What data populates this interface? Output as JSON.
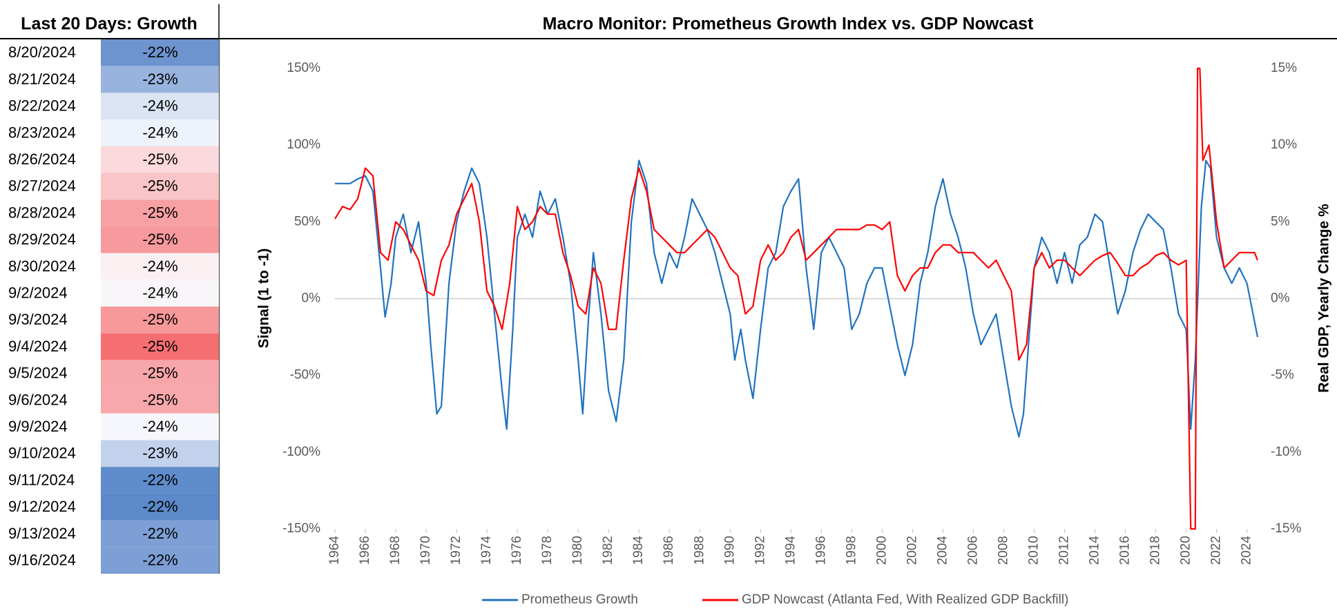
{
  "table": {
    "title": "Last 20 Days: Growth",
    "rows": [
      [
        "8/20/2024",
        "-22%"
      ],
      [
        "8/21/2024",
        "-23%"
      ],
      [
        "8/22/2024",
        "-24%"
      ],
      [
        "8/23/2024",
        "-24%"
      ],
      [
        "8/26/2024",
        "-25%"
      ],
      [
        "8/27/2024",
        "-25%"
      ],
      [
        "8/28/2024",
        "-25%"
      ],
      [
        "8/29/2024",
        "-25%"
      ],
      [
        "8/30/2024",
        "-24%"
      ],
      [
        "9/2/2024",
        "-24%"
      ],
      [
        "9/3/2024",
        "-25%"
      ],
      [
        "9/4/2024",
        "-25%"
      ],
      [
        "9/5/2024",
        "-25%"
      ],
      [
        "9/6/2024",
        "-25%"
      ],
      [
        "9/9/2024",
        "-24%"
      ],
      [
        "9/10/2024",
        "-23%"
      ],
      [
        "9/11/2024",
        "-22%"
      ],
      [
        "9/12/2024",
        "-22%"
      ],
      [
        "9/13/2024",
        "-22%"
      ],
      [
        "9/16/2024",
        "-22%"
      ]
    ],
    "colors": [
      "#6d94cf",
      "#98b3dd",
      "#dae4f3",
      "#eef2fa",
      "#fbd9dc",
      "#f9c5c8",
      "#f7a1a4",
      "#f69a9d",
      "#faf0f2",
      "#f9f6fa",
      "#f7989b",
      "#f56f72",
      "#f7a6a9",
      "#f7a8ab",
      "#f6f7fc",
      "#c2d2ec",
      "#5f8cca",
      "#5b89c9",
      "#7d9fd5",
      "#7d9fd5"
    ]
  },
  "chart_data": {
    "type": "line",
    "title": "Macro Monitor: Prometheus Growth Index vs. GDP Nowcast",
    "y_label": "Signal (1 to -1)",
    "y2_label": "Real GDP, Yearly Change %",
    "xlim": [
      1964,
      2024.7
    ],
    "xticks": [
      1964,
      1966,
      1968,
      1970,
      1972,
      1974,
      1976,
      1978,
      1980,
      1982,
      1984,
      1986,
      1988,
      1990,
      1992,
      1994,
      1996,
      1998,
      2000,
      2002,
      2004,
      2006,
      2008,
      2010,
      2012,
      2014,
      2016,
      2018,
      2020,
      2022,
      2024
    ],
    "ylim": [
      -150,
      150
    ],
    "yticks": [
      {
        "value": -150,
        "label": "-150%"
      },
      {
        "value": -100,
        "label": "-100%"
      },
      {
        "value": -50,
        "label": "-50%"
      },
      {
        "value": 0,
        "label": "0%"
      },
      {
        "value": 50,
        "label": "50%"
      },
      {
        "value": 100,
        "label": "100%"
      },
      {
        "value": 150,
        "label": "150%"
      }
    ],
    "y2lim": [
      -15,
      15
    ],
    "y2ticks": [
      {
        "value": -15,
        "label": "-15%"
      },
      {
        "value": -10,
        "label": "-10%"
      },
      {
        "value": -5,
        "label": "-5%"
      },
      {
        "value": 0,
        "label": "0%"
      },
      {
        "value": 5,
        "label": "5%"
      },
      {
        "value": 10,
        "label": "10%"
      },
      {
        "value": 15,
        "label": "15%"
      }
    ],
    "series": [
      {
        "name": "Prometheus Growth",
        "color": "#1f72c0",
        "x": [
          1964.0,
          1965.0,
          1965.5,
          1966.0,
          1966.5,
          1967.0,
          1967.3,
          1967.7,
          1968.0,
          1968.5,
          1969.0,
          1969.5,
          1970.0,
          1970.3,
          1970.7,
          1971.0,
          1971.5,
          1972.0,
          1972.5,
          1973.0,
          1973.5,
          1974.0,
          1974.5,
          1975.0,
          1975.3,
          1975.7,
          1976.0,
          1976.5,
          1977.0,
          1977.5,
          1978.0,
          1978.5,
          1979.0,
          1979.5,
          1980.0,
          1980.3,
          1980.7,
          1981.0,
          1981.5,
          1982.0,
          1982.5,
          1983.0,
          1983.5,
          1984.0,
          1984.5,
          1985.0,
          1985.5,
          1986.0,
          1986.5,
          1987.0,
          1987.5,
          1988.0,
          1988.5,
          1989.0,
          1989.5,
          1990.0,
          1990.3,
          1990.7,
          1991.0,
          1991.5,
          1992.0,
          1992.5,
          1993.0,
          1993.5,
          1994.0,
          1994.5,
          1995.0,
          1995.5,
          1996.0,
          1996.5,
          1997.0,
          1997.5,
          1998.0,
          1998.5,
          1999.0,
          1999.5,
          2000.0,
          2000.5,
          2001.0,
          2001.5,
          2002.0,
          2002.5,
          2003.0,
          2003.5,
          2004.0,
          2004.5,
          2005.0,
          2005.5,
          2006.0,
          2006.5,
          2007.0,
          2007.5,
          2008.0,
          2008.5,
          2009.0,
          2009.3,
          2009.7,
          2010.0,
          2010.5,
          2011.0,
          2011.5,
          2012.0,
          2012.5,
          2013.0,
          2013.5,
          2014.0,
          2014.5,
          2015.0,
          2015.5,
          2016.0,
          2016.5,
          2017.0,
          2017.5,
          2018.0,
          2018.5,
          2019.0,
          2019.5,
          2020.0,
          2020.3,
          2020.6,
          2021.0,
          2021.3,
          2021.6,
          2022.0,
          2022.5,
          2023.0,
          2023.5,
          2024.0,
          2024.4,
          2024.7
        ],
        "values": [
          75,
          75,
          78,
          80,
          70,
          20,
          -12,
          10,
          40,
          55,
          30,
          50,
          10,
          -30,
          -75,
          -70,
          10,
          50,
          70,
          85,
          75,
          40,
          -10,
          -60,
          -85,
          -20,
          40,
          55,
          40,
          70,
          55,
          65,
          40,
          10,
          -40,
          -75,
          -10,
          30,
          -10,
          -60,
          -80,
          -40,
          50,
          90,
          75,
          30,
          10,
          30,
          20,
          40,
          65,
          55,
          45,
          30,
          10,
          -10,
          -40,
          -20,
          -40,
          -65,
          -20,
          20,
          30,
          60,
          70,
          78,
          20,
          -20,
          30,
          40,
          30,
          20,
          -20,
          -10,
          10,
          20,
          20,
          -5,
          -30,
          -50,
          -30,
          10,
          30,
          60,
          78,
          55,
          40,
          20,
          -10,
          -30,
          -20,
          -10,
          -40,
          -70,
          -90,
          -75,
          -20,
          20,
          40,
          30,
          10,
          30,
          10,
          35,
          40,
          55,
          50,
          20,
          -10,
          5,
          30,
          45,
          55,
          50,
          45,
          20,
          -10,
          -20,
          -85,
          -40,
          60,
          90,
          85,
          40,
          20,
          10,
          20,
          10,
          -10,
          -25
        ]
      },
      {
        "name": "GDP Nowcast (Atlanta Fed, With Realized GDP Backfill)",
        "color": "#ff0000",
        "axis": "y2",
        "x": [
          1964.0,
          1964.5,
          1965.0,
          1965.5,
          1966.0,
          1966.5,
          1967.0,
          1967.5,
          1968.0,
          1968.5,
          1969.0,
          1969.5,
          1970.0,
          1970.5,
          1971.0,
          1971.5,
          1972.0,
          1972.5,
          1973.0,
          1973.5,
          1974.0,
          1974.5,
          1975.0,
          1975.5,
          1976.0,
          1976.5,
          1977.0,
          1977.5,
          1978.0,
          1978.5,
          1979.0,
          1979.5,
          1980.0,
          1980.5,
          1981.0,
          1981.5,
          1982.0,
          1982.5,
          1983.0,
          1983.5,
          1984.0,
          1984.5,
          1985.0,
          1985.5,
          1986.0,
          1986.5,
          1987.0,
          1987.5,
          1988.0,
          1988.5,
          1989.0,
          1989.5,
          1990.0,
          1990.5,
          1991.0,
          1991.5,
          1992.0,
          1992.5,
          1993.0,
          1993.5,
          1994.0,
          1994.5,
          1995.0,
          1995.5,
          1996.0,
          1996.5,
          1997.0,
          1997.5,
          1998.0,
          1998.5,
          1999.0,
          1999.5,
          2000.0,
          2000.5,
          2001.0,
          2001.5,
          2002.0,
          2002.5,
          2003.0,
          2003.5,
          2004.0,
          2004.5,
          2005.0,
          2005.5,
          2006.0,
          2006.5,
          2007.0,
          2007.5,
          2008.0,
          2008.5,
          2009.0,
          2009.5,
          2010.0,
          2010.5,
          2011.0,
          2011.5,
          2012.0,
          2012.5,
          2013.0,
          2013.5,
          2014.0,
          2014.5,
          2015.0,
          2015.5,
          2016.0,
          2016.5,
          2017.0,
          2017.5,
          2018.0,
          2018.5,
          2019.0,
          2019.5,
          2020.0,
          2020.3,
          2020.6,
          2020.75,
          2020.9,
          2021.1,
          2021.5,
          2022.0,
          2022.5,
          2023.0,
          2023.5,
          2024.0,
          2024.5,
          2024.7
        ],
        "values": [
          5.2,
          6.0,
          5.8,
          6.5,
          8.5,
          8.0,
          3.0,
          2.5,
          5.0,
          4.5,
          3.5,
          2.5,
          0.5,
          0.2,
          2.5,
          3.5,
          5.5,
          6.5,
          7.5,
          5.0,
          0.5,
          -0.5,
          -2.0,
          1.0,
          6.0,
          4.5,
          5.0,
          6.0,
          5.5,
          5.5,
          3.0,
          1.5,
          -0.5,
          -1.0,
          2.0,
          1.0,
          -2.0,
          -2.0,
          2.5,
          6.5,
          8.5,
          7.0,
          4.5,
          4.0,
          3.5,
          3.0,
          3.0,
          3.5,
          4.0,
          4.5,
          4.0,
          3.0,
          2.0,
          1.5,
          -1.0,
          -0.5,
          2.5,
          3.5,
          2.5,
          3.0,
          4.0,
          4.5,
          2.5,
          3.0,
          3.5,
          4.0,
          4.5,
          4.5,
          4.5,
          4.5,
          4.8,
          4.8,
          4.5,
          5.0,
          1.5,
          0.5,
          1.5,
          2.0,
          2.0,
          3.0,
          3.5,
          3.5,
          3.0,
          3.0,
          3.0,
          2.5,
          2.0,
          2.5,
          1.5,
          0.5,
          -4.0,
          -3.0,
          2.0,
          3.0,
          2.0,
          2.5,
          2.5,
          2.0,
          1.5,
          2.0,
          2.5,
          2.8,
          3.0,
          2.3,
          1.5,
          1.5,
          2.0,
          2.3,
          2.8,
          3.0,
          2.5,
          2.2,
          2.5,
          -15,
          -15,
          15,
          15,
          9,
          10,
          5,
          2,
          2.5,
          3,
          3,
          3,
          2.5
        ]
      }
    ]
  }
}
